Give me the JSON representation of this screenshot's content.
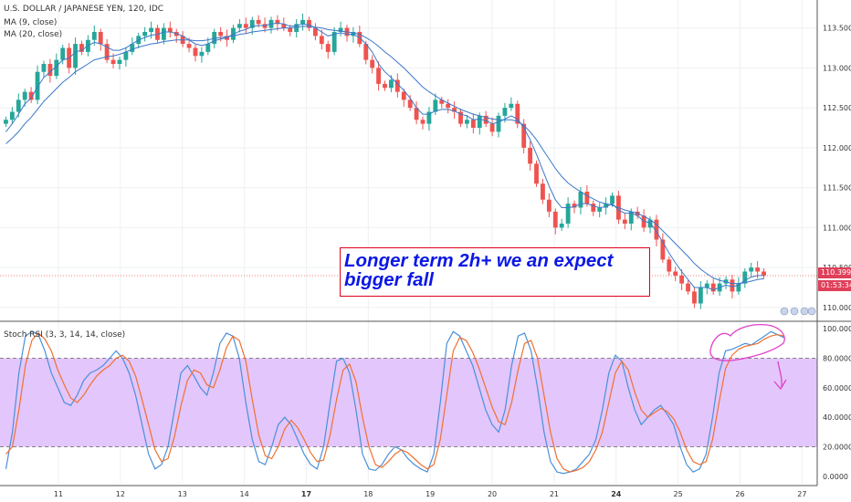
{
  "title_line": "U.S. DOLLAR / JAPANESE YEN, 120, IDC",
  "ma9_label": "MA (9, close)",
  "ma20_label": "MA (20, close)",
  "rsi_label": "Stoch RSI (3, 3, 14, 14, close)",
  "annotation": {
    "line1": "Longer term 2h+ we an expect",
    "line2": "bigger fall"
  },
  "current_price": "110.399",
  "countdown": "01:53:34",
  "colors": {
    "up": "#26a69a",
    "down": "#ef5350",
    "ma": "#3a78c9",
    "band": "#e3c6fb",
    "annotation_text": "#0a17e6",
    "annotation_border": "#e0001b",
    "pen": "#e040c8"
  },
  "chart_data": [
    {
      "type": "candlestick",
      "series": [
        {
          "name": "MA (9, close)"
        },
        {
          "name": "MA (20, close)"
        }
      ],
      "price_axis": [
        "113.500",
        "113.000",
        "112.500",
        "112.000",
        "111.500",
        "111.000",
        "110.500",
        "110.000"
      ],
      "ylim": [
        109.85,
        113.85
      ],
      "date_axis": [
        "11",
        "12",
        "13",
        "14",
        "17",
        "18",
        "19",
        "20",
        "21",
        "24",
        "25",
        "26",
        "27"
      ],
      "close": [
        112.35,
        112.45,
        112.6,
        112.7,
        112.6,
        112.95,
        113.05,
        112.9,
        113.1,
        113.25,
        113.0,
        113.3,
        113.2,
        113.35,
        113.45,
        113.3,
        113.1,
        113.05,
        113.1,
        113.2,
        113.3,
        113.4,
        113.45,
        113.5,
        113.35,
        113.5,
        113.45,
        113.4,
        113.3,
        113.25,
        113.15,
        113.2,
        113.3,
        113.45,
        113.4,
        113.35,
        113.5,
        113.55,
        113.5,
        113.6,
        113.55,
        113.5,
        113.6,
        113.55,
        113.5,
        113.45,
        113.55,
        113.6,
        113.5,
        113.4,
        113.3,
        113.2,
        113.45,
        113.5,
        113.4,
        113.45,
        113.3,
        113.1,
        113.0,
        112.8,
        112.75,
        112.85,
        112.7,
        112.6,
        112.5,
        112.35,
        112.3,
        112.45,
        112.6,
        112.55,
        112.5,
        112.45,
        112.3,
        112.35,
        112.25,
        112.4,
        112.3,
        112.2,
        112.4,
        112.5,
        112.55,
        112.3,
        112.0,
        111.8,
        111.55,
        111.35,
        111.2,
        111.0,
        111.05,
        111.3,
        111.25,
        111.45,
        111.3,
        111.2,
        111.25,
        111.3,
        111.4,
        111.1,
        111.05,
        111.2,
        111.15,
        111.0,
        111.1,
        110.85,
        110.6,
        110.45,
        110.4,
        110.3,
        110.2,
        110.05,
        110.25,
        110.3,
        110.2,
        110.3,
        110.35,
        110.2,
        110.3,
        110.45,
        110.5,
        110.45,
        110.4
      ],
      "ma9": [
        112.2,
        112.3,
        112.42,
        112.55,
        112.62,
        112.76,
        112.88,
        112.95,
        113.02,
        113.1,
        113.12,
        113.2,
        113.22,
        113.28,
        113.32,
        113.3,
        113.26,
        113.22,
        113.22,
        113.25,
        113.3,
        113.35,
        113.38,
        113.41,
        113.42,
        113.45,
        113.45,
        113.43,
        113.4,
        113.35,
        113.3,
        113.28,
        113.3,
        113.34,
        113.36,
        113.38,
        113.42,
        113.46,
        113.48,
        113.52,
        113.53,
        113.53,
        113.55,
        113.56,
        113.55,
        113.52,
        113.53,
        113.55,
        113.54,
        113.5,
        113.45,
        113.4,
        113.42,
        113.44,
        113.42,
        113.42,
        113.38,
        113.3,
        113.2,
        113.05,
        112.95,
        112.88,
        112.8,
        112.72,
        112.62,
        112.5,
        112.42,
        112.42,
        112.46,
        112.48,
        112.48,
        112.46,
        112.42,
        112.4,
        112.35,
        112.36,
        112.34,
        112.3,
        112.32,
        112.36,
        112.4,
        112.36,
        112.25,
        112.1,
        111.92,
        111.72,
        111.52,
        111.35,
        111.25,
        111.25,
        111.26,
        111.3,
        111.3,
        111.27,
        111.25,
        111.26,
        111.3,
        111.22,
        111.18,
        111.18,
        111.15,
        111.08,
        111.06,
        110.95,
        110.82,
        110.68,
        110.56,
        110.45,
        110.35,
        110.25,
        110.25,
        110.25,
        110.22,
        110.25,
        110.28,
        110.26,
        110.28,
        110.34,
        110.38,
        110.4,
        110.4
      ],
      "ma20": [
        112.05,
        112.12,
        112.2,
        112.3,
        112.38,
        112.48,
        112.58,
        112.66,
        112.74,
        112.82,
        112.88,
        112.95,
        113.0,
        113.05,
        113.1,
        113.12,
        113.14,
        113.15,
        113.17,
        113.2,
        113.23,
        113.26,
        113.28,
        113.3,
        113.31,
        113.33,
        113.34,
        113.35,
        113.35,
        113.35,
        113.34,
        113.34,
        113.35,
        113.37,
        113.38,
        113.39,
        113.4,
        113.42,
        113.43,
        113.45,
        113.46,
        113.47,
        113.48,
        113.49,
        113.5,
        113.5,
        113.51,
        113.52,
        113.52,
        113.51,
        113.5,
        113.48,
        113.47,
        113.46,
        113.45,
        113.44,
        113.42,
        113.38,
        113.33,
        113.27,
        113.2,
        113.14,
        113.07,
        113.0,
        112.92,
        112.84,
        112.76,
        112.7,
        112.65,
        112.6,
        112.56,
        112.52,
        112.48,
        112.45,
        112.42,
        112.4,
        112.38,
        112.36,
        112.35,
        112.35,
        112.35,
        112.33,
        112.28,
        112.2,
        112.1,
        111.98,
        111.86,
        111.74,
        111.64,
        111.56,
        111.5,
        111.45,
        111.4,
        111.36,
        111.32,
        111.3,
        111.28,
        111.25,
        111.22,
        111.2,
        111.18,
        111.14,
        111.1,
        111.04,
        110.96,
        110.88,
        110.8,
        110.72,
        110.64,
        110.55,
        110.48,
        110.42,
        110.37,
        110.34,
        110.32,
        110.3,
        110.3,
        110.31,
        110.33,
        110.35,
        110.36
      ]
    },
    {
      "type": "line",
      "series": [
        {
          "name": "K"
        },
        {
          "name": "D"
        }
      ],
      "axis": [
        "100.0000",
        "80.0000",
        "60.0000",
        "40.0000",
        "20.0000",
        "0.0000"
      ],
      "ylim": [
        -5,
        105
      ],
      "bands": [
        20,
        80
      ],
      "k": [
        5,
        30,
        70,
        95,
        98,
        96,
        85,
        70,
        60,
        50,
        48,
        55,
        65,
        70,
        72,
        75,
        80,
        85,
        80,
        70,
        55,
        35,
        15,
        5,
        8,
        20,
        45,
        70,
        75,
        68,
        60,
        55,
        70,
        90,
        97,
        95,
        80,
        50,
        25,
        10,
        8,
        20,
        35,
        40,
        35,
        25,
        15,
        8,
        5,
        20,
        50,
        78,
        80,
        70,
        45,
        15,
        5,
        4,
        8,
        15,
        20,
        18,
        12,
        8,
        5,
        3,
        15,
        50,
        90,
        98,
        95,
        85,
        75,
        60,
        45,
        35,
        30,
        45,
        75,
        95,
        97,
        85,
        60,
        30,
        10,
        3,
        2,
        3,
        5,
        10,
        15,
        25,
        45,
        70,
        82,
        78,
        60,
        45,
        35,
        40,
        45,
        48,
        42,
        35,
        20,
        8,
        3,
        5,
        15,
        40,
        70,
        85,
        86,
        88,
        90,
        89,
        92,
        95,
        98,
        96,
        94
      ],
      "d": [
        15,
        20,
        45,
        75,
        92,
        97,
        93,
        85,
        72,
        62,
        53,
        50,
        55,
        62,
        68,
        72,
        75,
        80,
        82,
        78,
        68,
        52,
        35,
        18,
        10,
        12,
        27,
        48,
        65,
        72,
        70,
        62,
        60,
        72,
        87,
        95,
        92,
        78,
        52,
        28,
        14,
        12,
        20,
        32,
        38,
        33,
        25,
        16,
        10,
        11,
        28,
        52,
        72,
        76,
        64,
        40,
        20,
        8,
        6,
        10,
        15,
        18,
        16,
        12,
        8,
        5,
        8,
        25,
        55,
        85,
        94,
        92,
        84,
        73,
        60,
        47,
        37,
        35,
        50,
        72,
        90,
        92,
        80,
        55,
        30,
        12,
        5,
        3,
        4,
        6,
        10,
        18,
        30,
        50,
        70,
        78,
        72,
        57,
        45,
        40,
        43,
        46,
        44,
        39,
        30,
        18,
        10,
        8,
        10,
        25,
        50,
        73,
        82,
        86,
        88,
        89,
        90,
        93,
        95,
        96,
        95
      ]
    }
  ]
}
